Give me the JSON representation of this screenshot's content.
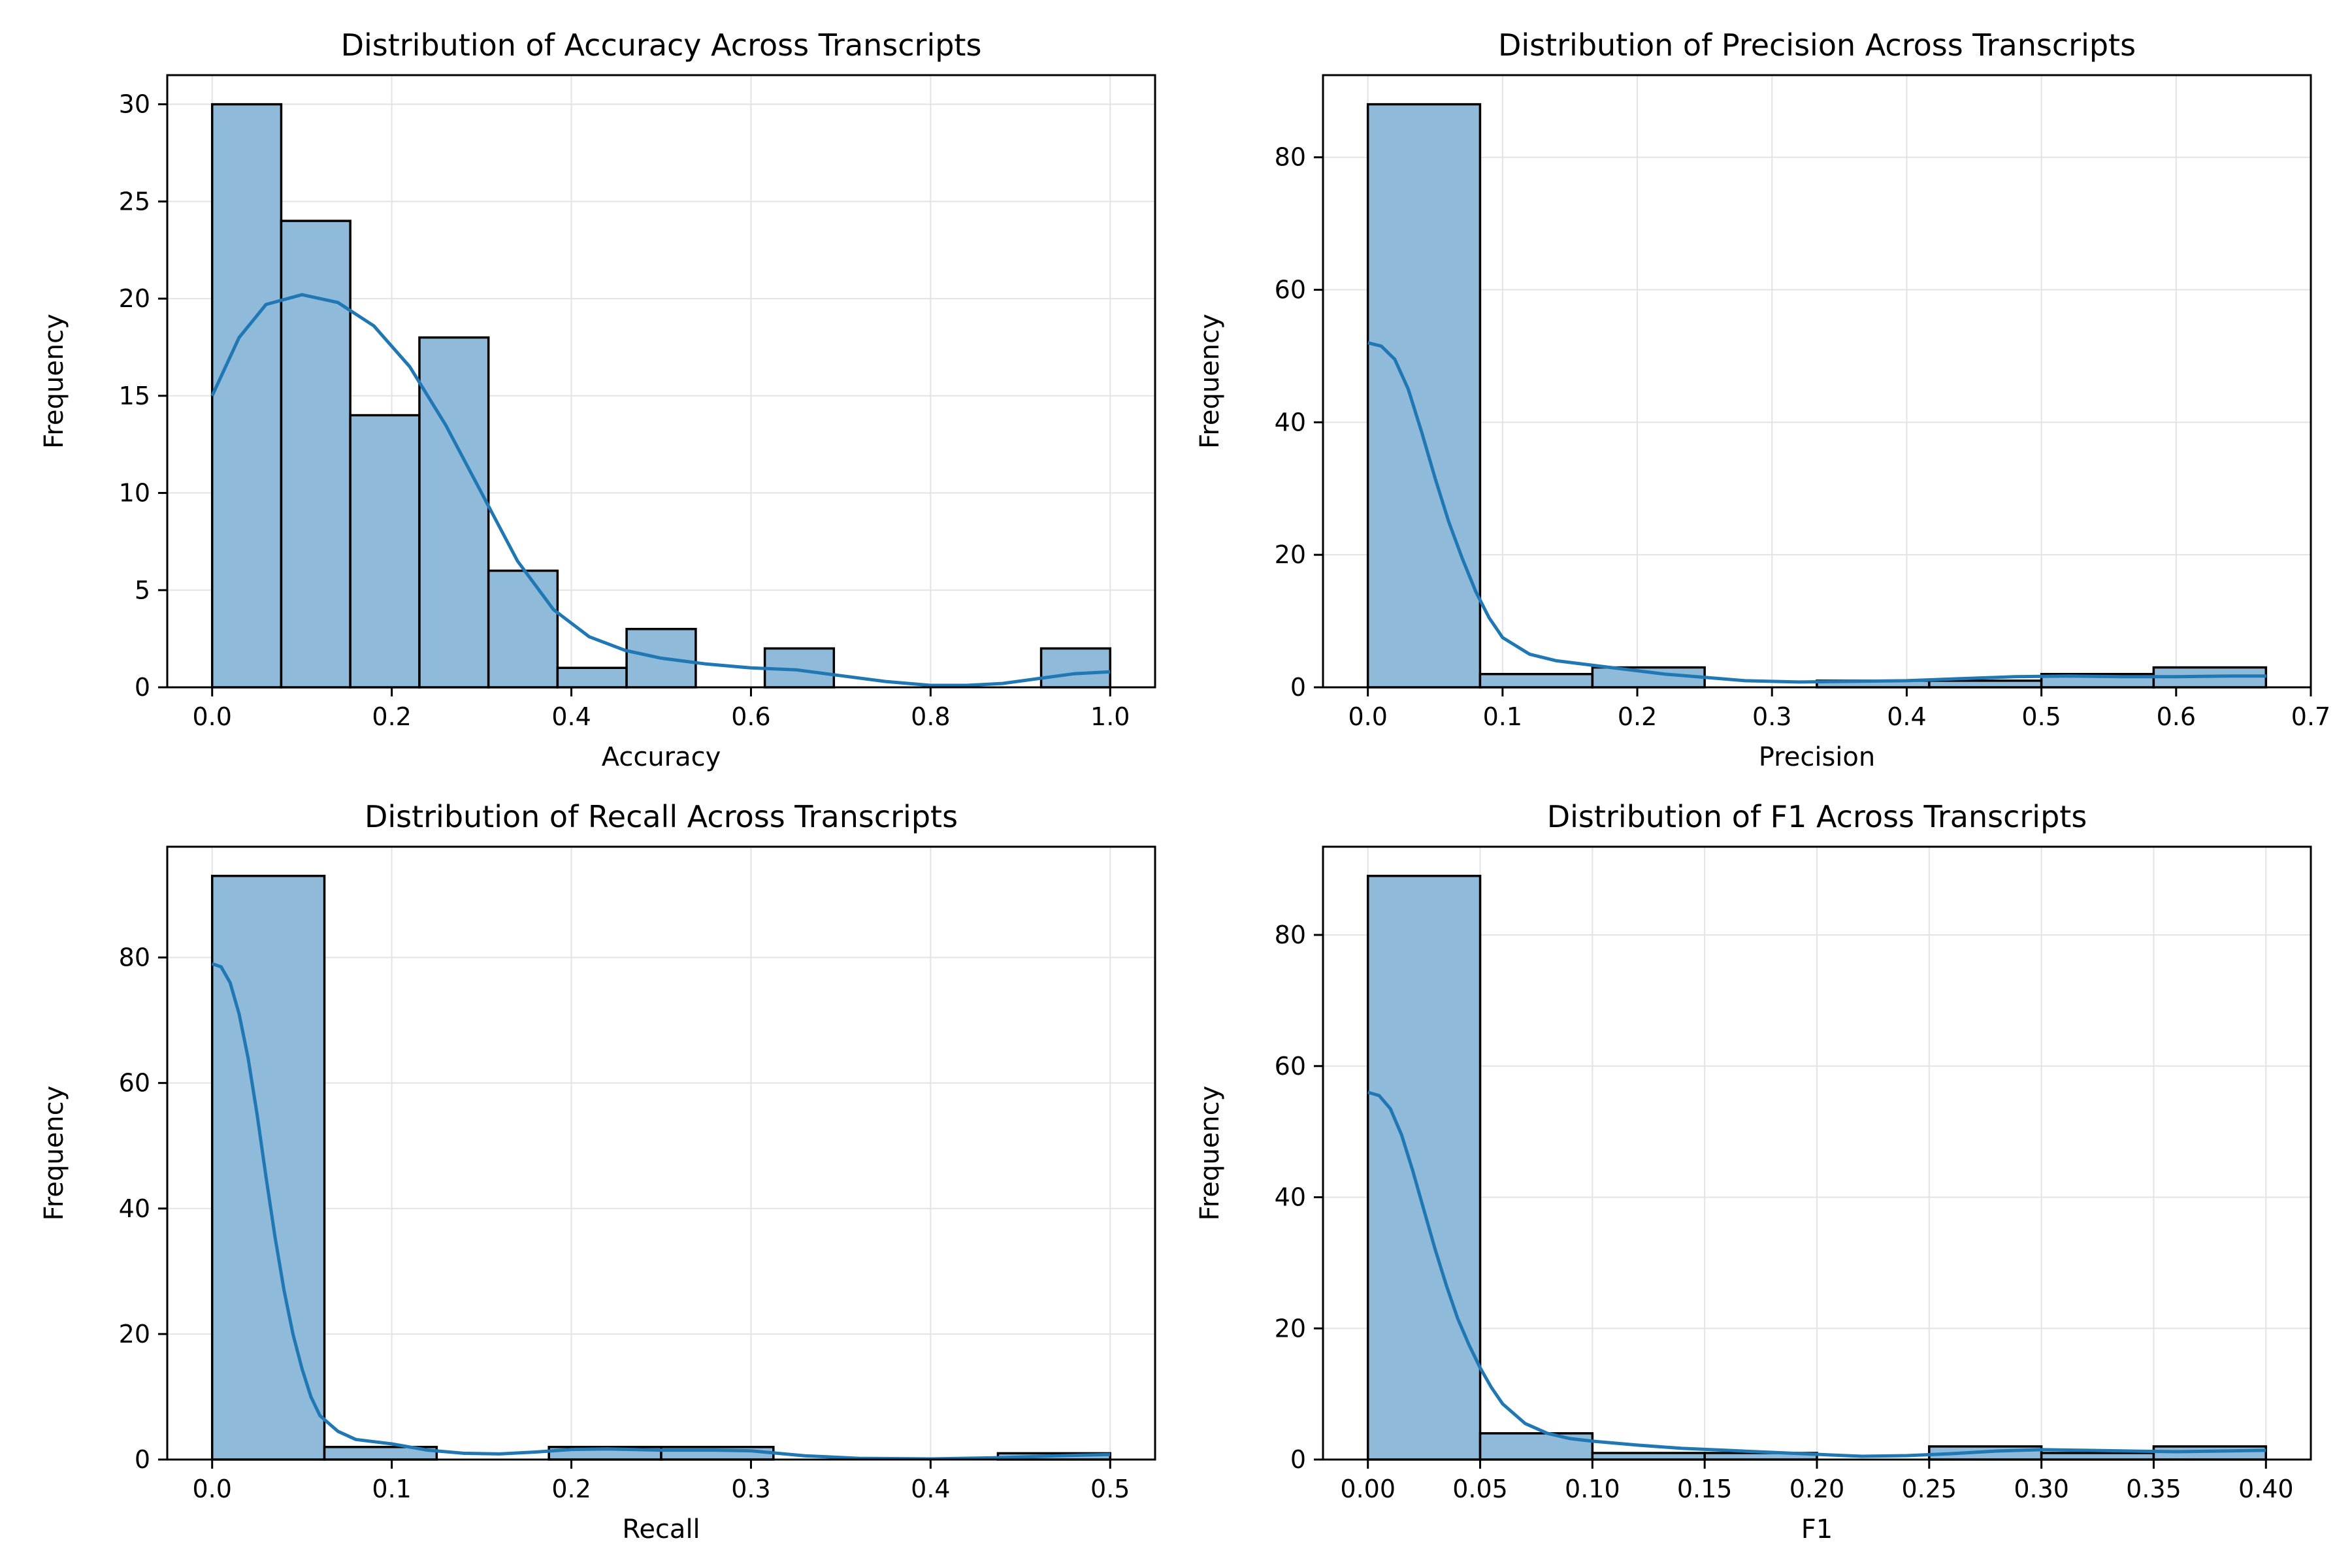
{
  "chart_data": [
    {
      "type": "histogram",
      "title": "Distribution of Accuracy Across Transcripts",
      "xlabel": "Accuracy",
      "ylabel": "Frequency",
      "xlim": [
        -0.05,
        1.05
      ],
      "ylim": [
        0,
        31.5
      ],
      "xticks": [
        0.0,
        0.2,
        0.4,
        0.6,
        0.8,
        1.0
      ],
      "xtick_labels": [
        "0.0",
        "0.2",
        "0.4",
        "0.6",
        "0.8",
        "1.0"
      ],
      "yticks": [
        0,
        5,
        10,
        15,
        20,
        25,
        30
      ],
      "ytick_labels": [
        "0",
        "5",
        "10",
        "15",
        "20",
        "25",
        "30"
      ],
      "bins": [
        {
          "x0": 0.0,
          "x1": 0.0769,
          "count": 30
        },
        {
          "x0": 0.0769,
          "x1": 0.1538,
          "count": 24
        },
        {
          "x0": 0.1538,
          "x1": 0.2308,
          "count": 14
        },
        {
          "x0": 0.2308,
          "x1": 0.3077,
          "count": 18
        },
        {
          "x0": 0.3077,
          "x1": 0.3846,
          "count": 6
        },
        {
          "x0": 0.3846,
          "x1": 0.4615,
          "count": 1
        },
        {
          "x0": 0.4615,
          "x1": 0.5385,
          "count": 3
        },
        {
          "x0": 0.5385,
          "x1": 0.6154,
          "count": 0
        },
        {
          "x0": 0.6154,
          "x1": 0.6923,
          "count": 2
        },
        {
          "x0": 0.6923,
          "x1": 0.7692,
          "count": 0
        },
        {
          "x0": 0.7692,
          "x1": 0.8462,
          "count": 0
        },
        {
          "x0": 0.8462,
          "x1": 0.9231,
          "count": 0
        },
        {
          "x0": 0.9231,
          "x1": 1.0,
          "count": 2
        }
      ],
      "kde": [
        [
          0.0,
          15.0
        ],
        [
          0.03,
          18.0
        ],
        [
          0.06,
          19.7
        ],
        [
          0.1,
          20.2
        ],
        [
          0.14,
          19.8
        ],
        [
          0.18,
          18.6
        ],
        [
          0.22,
          16.5
        ],
        [
          0.26,
          13.5
        ],
        [
          0.3,
          10.0
        ],
        [
          0.34,
          6.5
        ],
        [
          0.38,
          4.0
        ],
        [
          0.42,
          2.6
        ],
        [
          0.46,
          1.9
        ],
        [
          0.5,
          1.5
        ],
        [
          0.55,
          1.2
        ],
        [
          0.6,
          1.0
        ],
        [
          0.65,
          0.9
        ],
        [
          0.7,
          0.6
        ],
        [
          0.75,
          0.3
        ],
        [
          0.8,
          0.1
        ],
        [
          0.84,
          0.1
        ],
        [
          0.88,
          0.2
        ],
        [
          0.92,
          0.45
        ],
        [
          0.96,
          0.7
        ],
        [
          1.0,
          0.8
        ]
      ],
      "grid": true
    },
    {
      "type": "histogram",
      "title": "Distribution of Precision Across Transcripts",
      "xlabel": "Precision",
      "ylabel": "Frequency",
      "xlim": [
        -0.0333,
        0.7
      ],
      "ylim": [
        0,
        92.4
      ],
      "xticks": [
        0.0,
        0.1,
        0.2,
        0.3,
        0.4,
        0.5,
        0.6,
        0.7
      ],
      "xtick_labels": [
        "0.0",
        "0.1",
        "0.2",
        "0.3",
        "0.4",
        "0.5",
        "0.6",
        "0.7"
      ],
      "yticks": [
        0,
        20,
        40,
        60,
        80
      ],
      "ytick_labels": [
        "0",
        "20",
        "40",
        "60",
        "80"
      ],
      "bins": [
        {
          "x0": 0.0,
          "x1": 0.0833,
          "count": 88
        },
        {
          "x0": 0.0833,
          "x1": 0.1667,
          "count": 2
        },
        {
          "x0": 0.1667,
          "x1": 0.25,
          "count": 3
        },
        {
          "x0": 0.25,
          "x1": 0.3333,
          "count": 0
        },
        {
          "x0": 0.3333,
          "x1": 0.4167,
          "count": 1
        },
        {
          "x0": 0.4167,
          "x1": 0.5,
          "count": 1
        },
        {
          "x0": 0.5,
          "x1": 0.5833,
          "count": 2
        },
        {
          "x0": 0.5833,
          "x1": 0.6667,
          "count": 3
        }
      ],
      "kde": [
        [
          0.0,
          52.0
        ],
        [
          0.01,
          51.5
        ],
        [
          0.02,
          49.5
        ],
        [
          0.03,
          45.0
        ],
        [
          0.04,
          38.5
        ],
        [
          0.05,
          31.5
        ],
        [
          0.06,
          25.0
        ],
        [
          0.07,
          19.5
        ],
        [
          0.08,
          14.5
        ],
        [
          0.09,
          10.5
        ],
        [
          0.1,
          7.5
        ],
        [
          0.12,
          5.0
        ],
        [
          0.14,
          4.0
        ],
        [
          0.16,
          3.5
        ],
        [
          0.18,
          3.0
        ],
        [
          0.2,
          2.5
        ],
        [
          0.22,
          2.0
        ],
        [
          0.25,
          1.5
        ],
        [
          0.28,
          1.0
        ],
        [
          0.32,
          0.8
        ],
        [
          0.36,
          0.9
        ],
        [
          0.4,
          1.0
        ],
        [
          0.44,
          1.3
        ],
        [
          0.48,
          1.6
        ],
        [
          0.52,
          1.7
        ],
        [
          0.56,
          1.6
        ],
        [
          0.6,
          1.6
        ],
        [
          0.64,
          1.7
        ],
        [
          0.667,
          1.7
        ]
      ],
      "grid": true
    },
    {
      "type": "histogram",
      "title": "Distribution of Recall Across Transcripts",
      "xlabel": "Recall",
      "ylabel": "Frequency",
      "xlim": [
        -0.025,
        0.525
      ],
      "ylim": [
        0,
        97.65
      ],
      "xticks": [
        0.0,
        0.1,
        0.2,
        0.3,
        0.4,
        0.5
      ],
      "xtick_labels": [
        "0.0",
        "0.1",
        "0.2",
        "0.3",
        "0.4",
        "0.5"
      ],
      "yticks": [
        0,
        20,
        40,
        60,
        80
      ],
      "ytick_labels": [
        "0",
        "20",
        "40",
        "60",
        "80"
      ],
      "bins": [
        {
          "x0": 0.0,
          "x1": 0.0625,
          "count": 93
        },
        {
          "x0": 0.0625,
          "x1": 0.125,
          "count": 2
        },
        {
          "x0": 0.125,
          "x1": 0.1875,
          "count": 0
        },
        {
          "x0": 0.1875,
          "x1": 0.25,
          "count": 2
        },
        {
          "x0": 0.25,
          "x1": 0.3125,
          "count": 2
        },
        {
          "x0": 0.3125,
          "x1": 0.375,
          "count": 0
        },
        {
          "x0": 0.375,
          "x1": 0.4375,
          "count": 0
        },
        {
          "x0": 0.4375,
          "x1": 0.5,
          "count": 1
        }
      ],
      "kde": [
        [
          0.0,
          79.0
        ],
        [
          0.005,
          78.5
        ],
        [
          0.01,
          76.0
        ],
        [
          0.015,
          71.0
        ],
        [
          0.02,
          64.0
        ],
        [
          0.025,
          55.0
        ],
        [
          0.03,
          45.0
        ],
        [
          0.035,
          35.5
        ],
        [
          0.04,
          27.0
        ],
        [
          0.045,
          20.0
        ],
        [
          0.05,
          14.5
        ],
        [
          0.055,
          10.0
        ],
        [
          0.06,
          7.0
        ],
        [
          0.07,
          4.5
        ],
        [
          0.08,
          3.2
        ],
        [
          0.1,
          2.5
        ],
        [
          0.12,
          1.5
        ],
        [
          0.14,
          1.0
        ],
        [
          0.16,
          0.9
        ],
        [
          0.18,
          1.2
        ],
        [
          0.2,
          1.6
        ],
        [
          0.22,
          1.7
        ],
        [
          0.25,
          1.5
        ],
        [
          0.28,
          1.5
        ],
        [
          0.3,
          1.4
        ],
        [
          0.33,
          0.6
        ],
        [
          0.36,
          0.2
        ],
        [
          0.4,
          0.1
        ],
        [
          0.44,
          0.3
        ],
        [
          0.47,
          0.6
        ],
        [
          0.5,
          0.8
        ]
      ],
      "grid": true
    },
    {
      "type": "histogram",
      "title": "Distribution of F1 Across Transcripts",
      "xlabel": "F1",
      "ylabel": "Frequency",
      "xlim": [
        -0.02,
        0.42
      ],
      "ylim": [
        0,
        93.45
      ],
      "xticks": [
        0.0,
        0.05,
        0.1,
        0.15,
        0.2,
        0.25,
        0.3,
        0.35,
        0.4
      ],
      "xtick_labels": [
        "0.00",
        "0.05",
        "0.10",
        "0.15",
        "0.20",
        "0.25",
        "0.30",
        "0.35",
        "0.40"
      ],
      "yticks": [
        0,
        20,
        40,
        60,
        80
      ],
      "ytick_labels": [
        "0",
        "20",
        "40",
        "60",
        "80"
      ],
      "bins": [
        {
          "x0": 0.0,
          "x1": 0.05,
          "count": 89
        },
        {
          "x0": 0.05,
          "x1": 0.1,
          "count": 4
        },
        {
          "x0": 0.1,
          "x1": 0.15,
          "count": 1
        },
        {
          "x0": 0.15,
          "x1": 0.2,
          "count": 1
        },
        {
          "x0": 0.2,
          "x1": 0.25,
          "count": 0
        },
        {
          "x0": 0.25,
          "x1": 0.3,
          "count": 2
        },
        {
          "x0": 0.3,
          "x1": 0.35,
          "count": 1
        },
        {
          "x0": 0.35,
          "x1": 0.4,
          "count": 2
        }
      ],
      "kde": [
        [
          0.0,
          56.0
        ],
        [
          0.005,
          55.5
        ],
        [
          0.01,
          53.5
        ],
        [
          0.015,
          49.5
        ],
        [
          0.02,
          44.0
        ],
        [
          0.025,
          38.0
        ],
        [
          0.03,
          32.0
        ],
        [
          0.035,
          26.5
        ],
        [
          0.04,
          21.5
        ],
        [
          0.045,
          17.5
        ],
        [
          0.05,
          14.0
        ],
        [
          0.055,
          11.0
        ],
        [
          0.06,
          8.5
        ],
        [
          0.07,
          5.5
        ],
        [
          0.08,
          4.0
        ],
        [
          0.09,
          3.2
        ],
        [
          0.1,
          2.8
        ],
        [
          0.12,
          2.2
        ],
        [
          0.14,
          1.7
        ],
        [
          0.16,
          1.4
        ],
        [
          0.18,
          1.1
        ],
        [
          0.2,
          0.8
        ],
        [
          0.22,
          0.5
        ],
        [
          0.24,
          0.6
        ],
        [
          0.26,
          0.9
        ],
        [
          0.28,
          1.3
        ],
        [
          0.3,
          1.5
        ],
        [
          0.32,
          1.4
        ],
        [
          0.34,
          1.3
        ],
        [
          0.36,
          1.2
        ],
        [
          0.38,
          1.3
        ],
        [
          0.4,
          1.4
        ]
      ],
      "grid": true
    }
  ],
  "colors": {
    "bar_fill": "#8fbad9",
    "bar_edge": "#000000",
    "kde_line": "#1f77b4",
    "grid": "#e3e3e3"
  }
}
